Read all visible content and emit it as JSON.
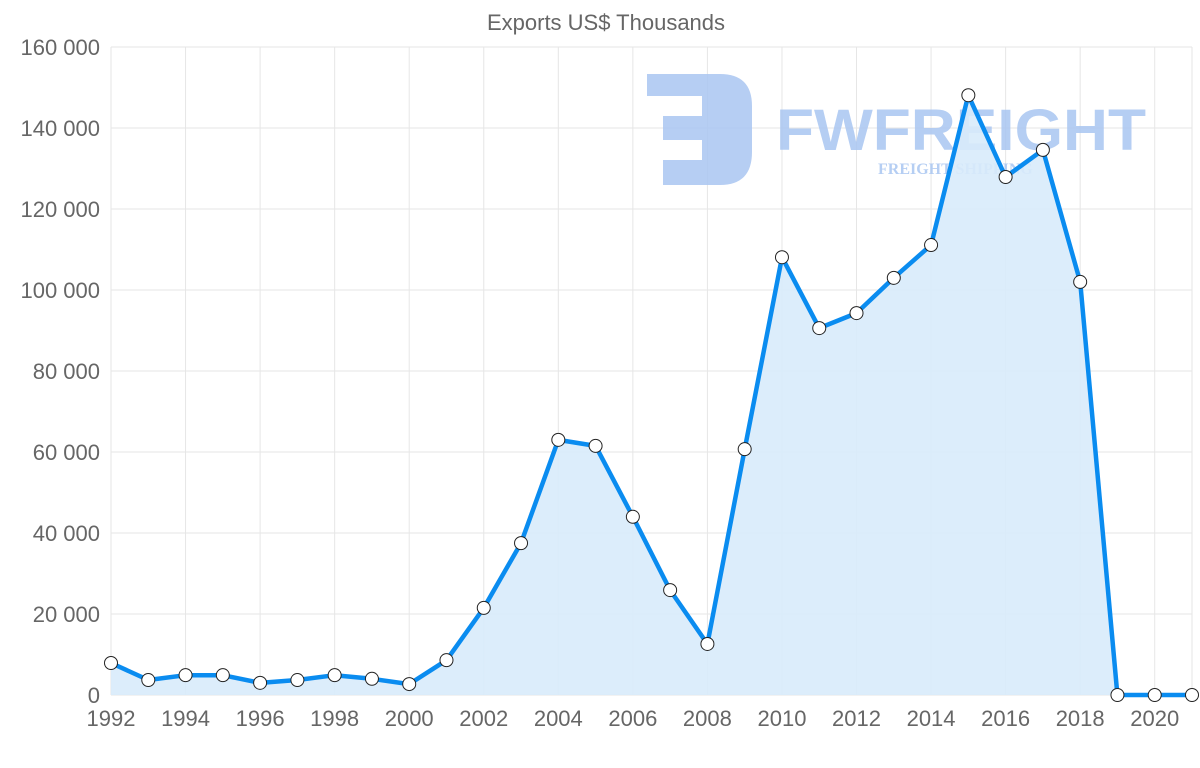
{
  "chart_data": {
    "type": "area",
    "title": "Exports US$ Thousands",
    "xlabel": "",
    "ylabel": "",
    "x": [
      1992,
      1993,
      1994,
      1995,
      1996,
      1997,
      1998,
      1999,
      2000,
      2001,
      2002,
      2003,
      2004,
      2005,
      2006,
      2007,
      2008,
      2009,
      2010,
      2011,
      2012,
      2013,
      2014,
      2015,
      2016,
      2017,
      2018,
      2019,
      2020,
      2021
    ],
    "series": [
      {
        "name": "Exports US$ Thousands",
        "values": [
          7900,
          3700,
          4900,
          4900,
          3000,
          3700,
          4900,
          4000,
          2700,
          8600,
          21500,
          37500,
          63000,
          61500,
          44000,
          25900,
          12600,
          60700,
          108100,
          90600,
          94300,
          103000,
          111100,
          148100,
          127900,
          134600,
          102000,
          0,
          0,
          0
        ]
      }
    ],
    "ylim": [
      0,
      160000
    ],
    "xlim": [
      1992,
      2021
    ],
    "y_ticks": [
      "0",
      "20 000",
      "40 000",
      "60 000",
      "80 000",
      "100 000",
      "120 000",
      "140 000",
      "160 000"
    ],
    "x_ticks": [
      "1992",
      "1994",
      "1996",
      "1998",
      "2000",
      "2002",
      "2004",
      "2006",
      "2008",
      "2010",
      "2012",
      "2014",
      "2016",
      "2018",
      "2020"
    ],
    "grid": true,
    "colors": {
      "line": "#0a8cf0",
      "fill": "#d8ebfb",
      "grid": "#e6e6e6",
      "text": "#666666"
    }
  },
  "watermark": {
    "name": "FWFREIGHT",
    "tagline": "FREIGHT SHIPPING",
    "color": "#a9c6f1"
  }
}
